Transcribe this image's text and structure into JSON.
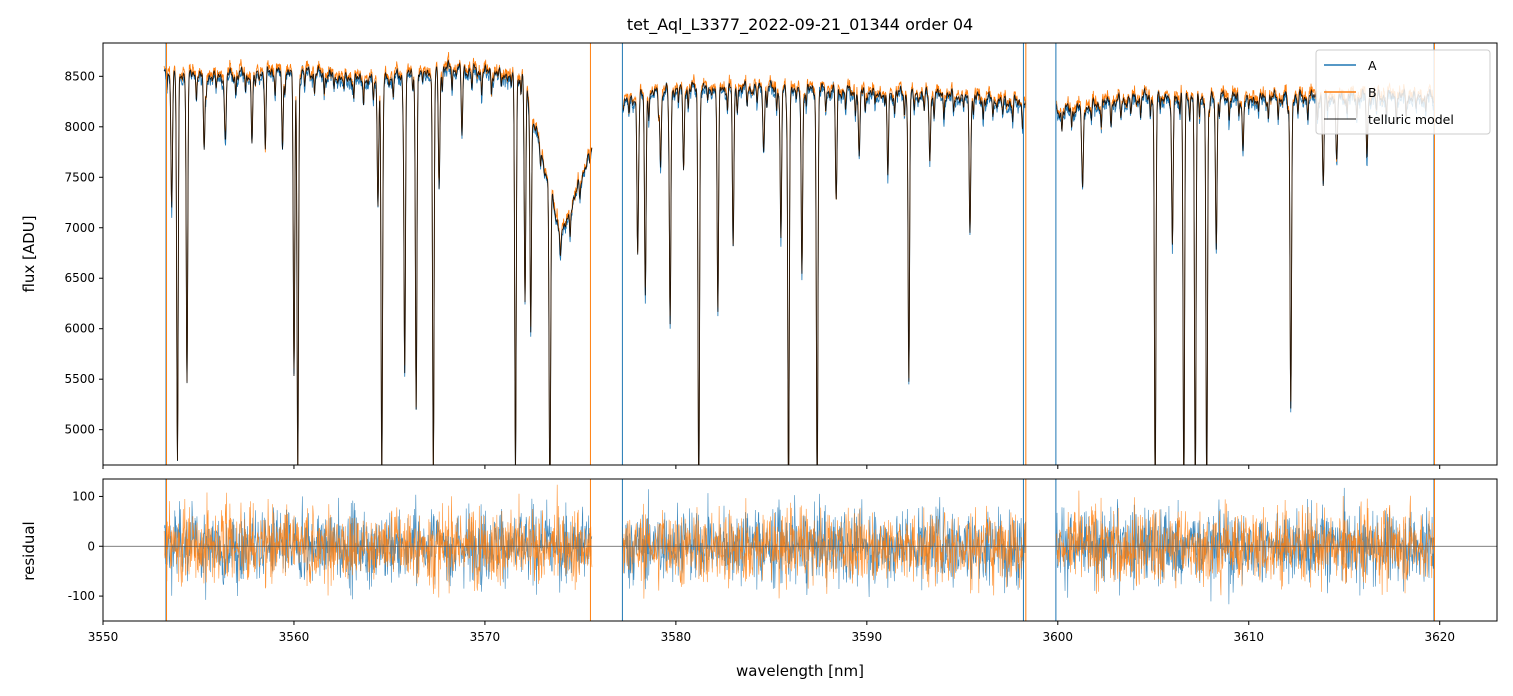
{
  "chart_data": [
    {
      "type": "line",
      "panel": "main",
      "title": "tet_Aql_L3377_2022-09-21_01344  order 04",
      "xlabel": "",
      "ylabel": "flux [ADU]",
      "xlim": [
        3550.0,
        3623.0
      ],
      "ylim": [
        4650,
        8830
      ],
      "yticks": [
        5000,
        5500,
        6000,
        6500,
        7000,
        7500,
        8000,
        8500
      ],
      "xticks": [
        3550,
        3560,
        3570,
        3580,
        3590,
        3600,
        3610,
        3620
      ],
      "legend_position": "top-right",
      "segments": [
        {
          "x0": 3553.2,
          "x1": 3575.6
        },
        {
          "x0": 3577.2,
          "x1": 3598.3
        },
        {
          "x0": 3599.9,
          "x1": 3619.7
        }
      ],
      "continuum": {
        "x": [
          3553.2,
          3556.0,
          3560.0,
          3564.0,
          3568.0,
          3572.0,
          3574.0,
          3575.5,
          3577.3,
          3580.0,
          3585.0,
          3590.0,
          3595.0,
          3598.2,
          3600.0,
          3605.0,
          3610.0,
          3615.0,
          3619.6
        ],
        "y": [
          8530,
          8500,
          8560,
          8450,
          8580,
          8500,
          6900,
          7750,
          8250,
          8380,
          8380,
          8340,
          8300,
          8230,
          8150,
          8310,
          8280,
          8300,
          8300
        ]
      },
      "absorption_lines": [
        {
          "x": 3553.6,
          "depth": 1300
        },
        {
          "x": 3553.9,
          "depth": 3800
        },
        {
          "x": 3554.4,
          "depth": 2900
        },
        {
          "x": 3555.3,
          "depth": 800
        },
        {
          "x": 3556.4,
          "depth": 600
        },
        {
          "x": 3557.8,
          "depth": 700
        },
        {
          "x": 3558.5,
          "depth": 600
        },
        {
          "x": 3559.4,
          "depth": 800
        },
        {
          "x": 3560.0,
          "depth": 3000
        },
        {
          "x": 3560.2,
          "depth": 4000
        },
        {
          "x": 3564.4,
          "depth": 1200
        },
        {
          "x": 3564.6,
          "depth": 4000
        },
        {
          "x": 3565.8,
          "depth": 2900
        },
        {
          "x": 3566.4,
          "depth": 3300
        },
        {
          "x": 3567.3,
          "depth": 4000
        },
        {
          "x": 3567.6,
          "depth": 1200
        },
        {
          "x": 3568.8,
          "depth": 500
        },
        {
          "x": 3571.6,
          "depth": 4000
        },
        {
          "x": 3572.1,
          "depth": 2200
        },
        {
          "x": 3572.4,
          "depth": 2000
        },
        {
          "x": 3573.4,
          "depth": 3000
        },
        {
          "x": 3578.0,
          "depth": 1500
        },
        {
          "x": 3578.4,
          "depth": 2000
        },
        {
          "x": 3579.2,
          "depth": 700
        },
        {
          "x": 3579.7,
          "depth": 2300
        },
        {
          "x": 3580.4,
          "depth": 800
        },
        {
          "x": 3581.2,
          "depth": 4000
        },
        {
          "x": 3582.2,
          "depth": 2100
        },
        {
          "x": 3583.0,
          "depth": 1600
        },
        {
          "x": 3584.6,
          "depth": 600
        },
        {
          "x": 3585.5,
          "depth": 1500
        },
        {
          "x": 3585.9,
          "depth": 4000
        },
        {
          "x": 3586.6,
          "depth": 1800
        },
        {
          "x": 3587.4,
          "depth": 4000
        },
        {
          "x": 3588.4,
          "depth": 1000
        },
        {
          "x": 3589.6,
          "depth": 700
        },
        {
          "x": 3591.1,
          "depth": 800
        },
        {
          "x": 3592.2,
          "depth": 2800
        },
        {
          "x": 3593.3,
          "depth": 600
        },
        {
          "x": 3595.4,
          "depth": 1300
        },
        {
          "x": 3601.3,
          "depth": 800
        },
        {
          "x": 3605.1,
          "depth": 4000
        },
        {
          "x": 3606.0,
          "depth": 1500
        },
        {
          "x": 3606.6,
          "depth": 4000
        },
        {
          "x": 3607.2,
          "depth": 4000
        },
        {
          "x": 3607.8,
          "depth": 4000
        },
        {
          "x": 3608.3,
          "depth": 1500
        },
        {
          "x": 3609.7,
          "depth": 500
        },
        {
          "x": 3612.2,
          "depth": 3100
        },
        {
          "x": 3613.9,
          "depth": 900
        },
        {
          "x": 3614.6,
          "depth": 600
        },
        {
          "x": 3616.2,
          "depth": 500
        }
      ],
      "spikes_A": [
        3553.3,
        3577.2,
        3598.2,
        3599.9,
        3619.7
      ],
      "spikes_B": [
        3553.3,
        3575.5,
        3598.3,
        3619.7
      ],
      "series": [
        {
          "name": "A",
          "color": "#1f77b4"
        },
        {
          "name": "B",
          "color": "#ff7f0e"
        },
        {
          "name": "telluric model",
          "color": "#000000"
        }
      ]
    },
    {
      "type": "line",
      "panel": "residual",
      "title": "",
      "xlabel": "wavelength [nm]",
      "ylabel": "residual",
      "xlim": [
        3550.0,
        3623.0
      ],
      "ylim": [
        -150,
        135
      ],
      "yticks": [
        -100,
        0,
        100
      ],
      "xticks": [
        3550,
        3560,
        3570,
        3580,
        3590,
        3600,
        3610,
        3620
      ],
      "zero_line": 0,
      "noise_amplitude": 35,
      "series": [
        {
          "name": "A",
          "color": "#1f77b4"
        },
        {
          "name": "B",
          "color": "#ff7f0e"
        }
      ]
    }
  ]
}
